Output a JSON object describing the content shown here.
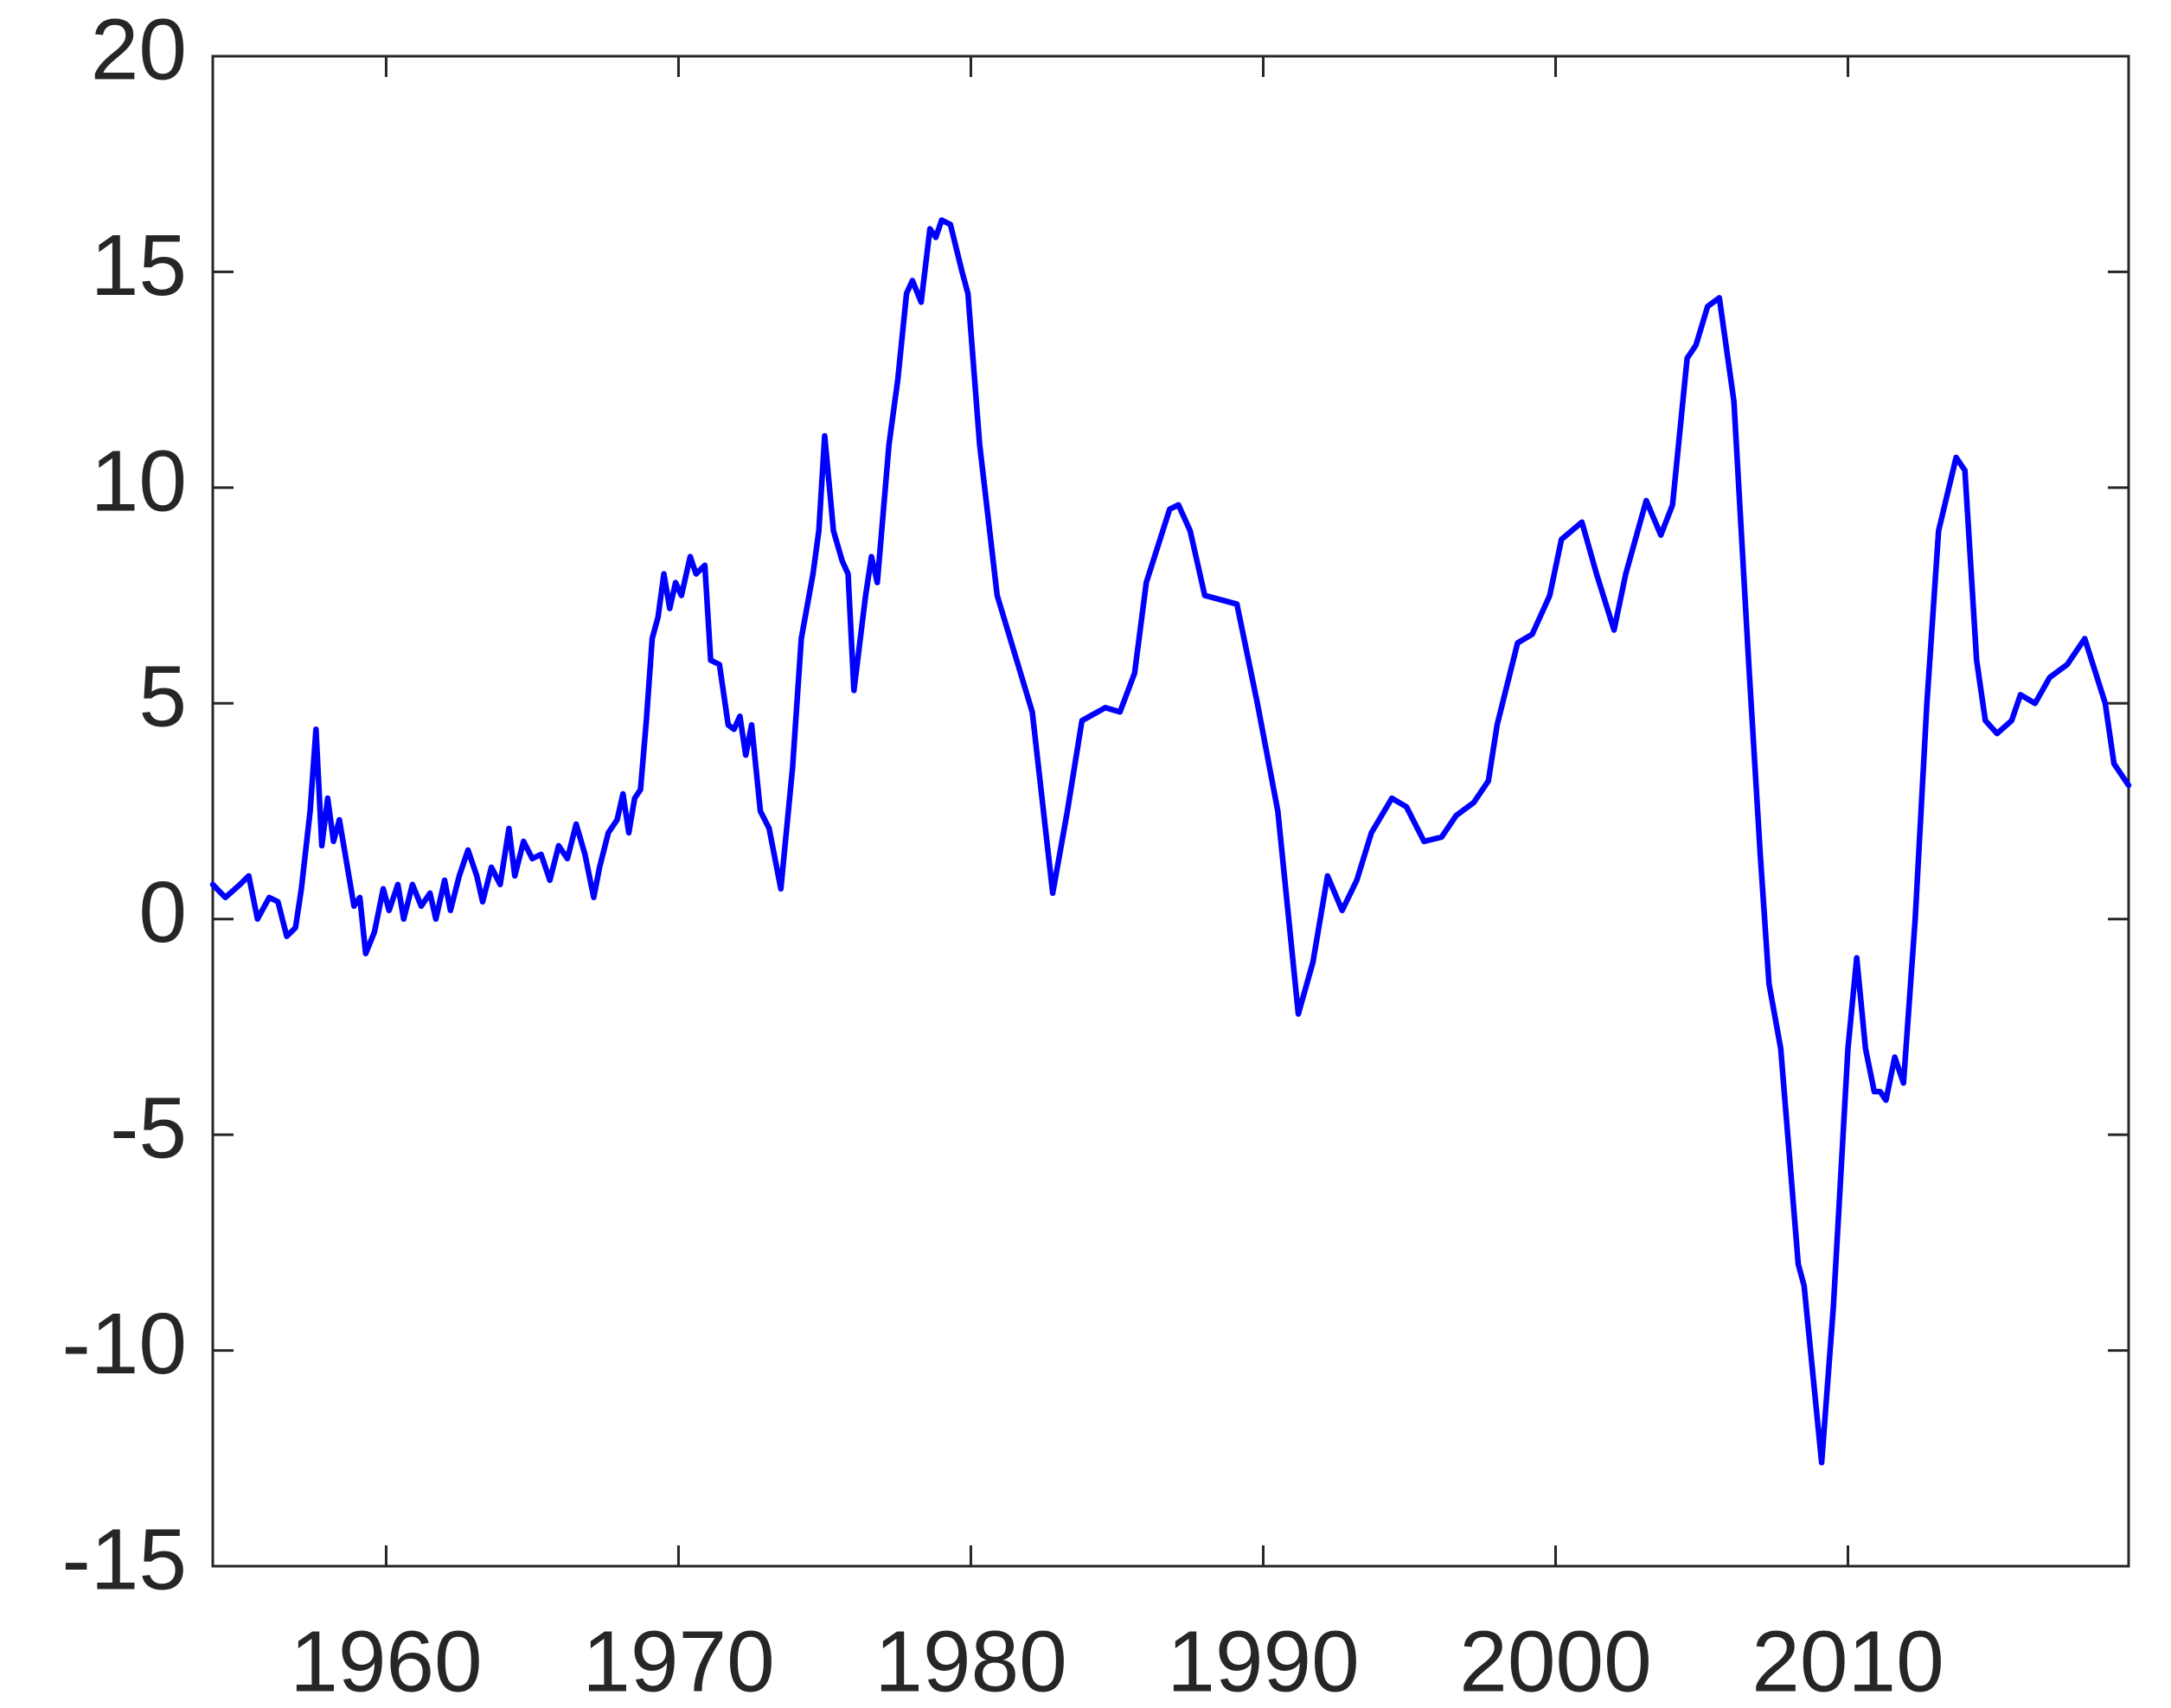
{
  "chart_data": {
    "type": "line",
    "x": [
      1954.07,
      1954.5,
      1955.0,
      1955.3,
      1955.6,
      1956.0,
      1956.3,
      1956.6,
      1956.9,
      1957.1,
      1957.4,
      1957.6,
      1957.8,
      1958.0,
      1958.2,
      1958.4,
      1958.6,
      1958.9,
      1959.1,
      1959.3,
      1959.6,
      1959.9,
      1960.1,
      1960.4,
      1960.6,
      1960.9,
      1961.2,
      1961.5,
      1961.7,
      1962.0,
      1962.2,
      1962.5,
      1962.8,
      1963.1,
      1963.3,
      1963.6,
      1963.9,
      1964.2,
      1964.4,
      1964.7,
      1965.0,
      1965.3,
      1965.6,
      1965.9,
      1966.2,
      1966.5,
      1966.8,
      1967.1,
      1967.3,
      1967.6,
      1967.9,
      1968.1,
      1968.3,
      1968.5,
      1968.7,
      1968.9,
      1969.1,
      1969.3,
      1969.5,
      1969.7,
      1969.9,
      1970.1,
      1970.4,
      1970.6,
      1970.9,
      1971.1,
      1971.4,
      1971.7,
      1971.9,
      1972.1,
      1972.3,
      1972.5,
      1972.8,
      1973.1,
      1973.5,
      1973.9,
      1974.2,
      1974.6,
      1974.8,
      1975.0,
      1975.3,
      1975.6,
      1975.8,
      1976.0,
      1976.4,
      1976.6,
      1976.8,
      1977.2,
      1977.5,
      1977.8,
      1978.0,
      1978.3,
      1978.6,
      1978.8,
      1979.0,
      1979.3,
      1979.7,
      1979.9,
      1980.3,
      1980.9,
      1981.3,
      1982.1,
      1982.8,
      1983.3,
      1983.8,
      1984.6,
      1985.1,
      1985.6,
      1986.0,
      1986.8,
      1987.1,
      1987.5,
      1988.0,
      1989.1,
      1989.8,
      1990.5,
      1991.2,
      1991.7,
      1992.2,
      1992.7,
      1993.2,
      1993.7,
      1994.4,
      1994.9,
      1995.5,
      1996.1,
      1996.6,
      1997.2,
      1997.7,
      1998.0,
      1998.7,
      1999.2,
      1999.8,
      2000.2,
      2000.9,
      2001.4,
      2002.0,
      2002.4,
      2003.1,
      2003.6,
      2004.0,
      2004.5,
      2004.8,
      2005.2,
      2005.6,
      2006.1,
      2006.6,
      2007.0,
      2007.3,
      2007.7,
      2008.3,
      2008.5,
      2009.1,
      2009.5,
      2010.0,
      2010.3,
      2010.6,
      2010.9,
      2011.1,
      2011.3,
      2011.6,
      2011.9,
      2012.3,
      2012.7,
      2013.1,
      2013.7,
      2014.0,
      2014.4,
      2014.7,
      2015.1,
      2015.6,
      2015.9,
      2016.4,
      2016.9,
      2017.5,
      2018.1,
      2018.8,
      2019.1,
      2019.6
    ],
    "values": [
      0.8,
      0.5,
      0.8,
      1.0,
      0.0,
      0.5,
      0.4,
      -0.4,
      -0.2,
      0.7,
      2.5,
      4.4,
      1.7,
      2.8,
      1.8,
      2.3,
      1.5,
      0.3,
      0.5,
      -0.8,
      -0.3,
      0.7,
      0.2,
      0.8,
      0.0,
      0.8,
      0.3,
      0.6,
      0.0,
      0.9,
      0.2,
      1.0,
      1.6,
      1.0,
      0.4,
      1.2,
      0.8,
      2.1,
      1.0,
      1.8,
      1.4,
      1.5,
      0.9,
      1.7,
      1.4,
      2.2,
      1.5,
      0.5,
      1.2,
      2.0,
      2.3,
      2.9,
      2.0,
      2.8,
      3.0,
      4.6,
      6.5,
      7.0,
      8.0,
      7.2,
      7.8,
      7.5,
      8.4,
      8.0,
      8.2,
      6.0,
      5.9,
      4.5,
      4.4,
      4.7,
      3.8,
      4.5,
      2.5,
      2.1,
      0.7,
      3.5,
      6.5,
      8.0,
      9.0,
      11.2,
      9.0,
      8.3,
      8.0,
      5.3,
      7.5,
      8.4,
      7.8,
      11.0,
      12.5,
      14.5,
      14.8,
      14.3,
      16.0,
      15.8,
      16.2,
      16.1,
      15.0,
      14.5,
      11.0,
      7.5,
      6.6,
      4.8,
      0.6,
      2.5,
      4.6,
      4.9,
      4.8,
      5.7,
      7.8,
      9.5,
      9.6,
      9.0,
      7.5,
      7.3,
      5.0,
      2.5,
      -2.2,
      -1.0,
      1.0,
      0.2,
      0.9,
      2.0,
      2.8,
      2.6,
      1.8,
      1.9,
      2.4,
      2.7,
      3.2,
      4.5,
      6.4,
      6.6,
      7.5,
      8.8,
      9.2,
      8.0,
      6.7,
      8.0,
      9.7,
      8.9,
      9.6,
      13.0,
      13.3,
      14.2,
      14.4,
      12.0,
      6.0,
      1.5,
      -1.5,
      -3.0,
      -8.0,
      -8.5,
      -12.6,
      -9.0,
      -3.0,
      -0.9,
      -3.0,
      -4.0,
      -4.0,
      -4.2,
      -3.2,
      -3.8,
      0.0,
      5.0,
      9.0,
      10.7,
      10.4,
      6.0,
      4.6,
      4.3,
      4.6,
      5.2,
      5.0,
      5.6,
      5.9,
      6.5,
      5.0,
      3.6,
      3.1
    ],
    "color": "#0000ff",
    "xlim": [
      1954.07,
      2019.6
    ],
    "xticks": [
      1960,
      1970,
      1980,
      1990,
      2000,
      2010
    ],
    "ylim": [
      -15,
      20
    ],
    "yticks": [
      -15,
      -10,
      -5,
      0,
      5,
      10,
      15,
      20
    ]
  }
}
